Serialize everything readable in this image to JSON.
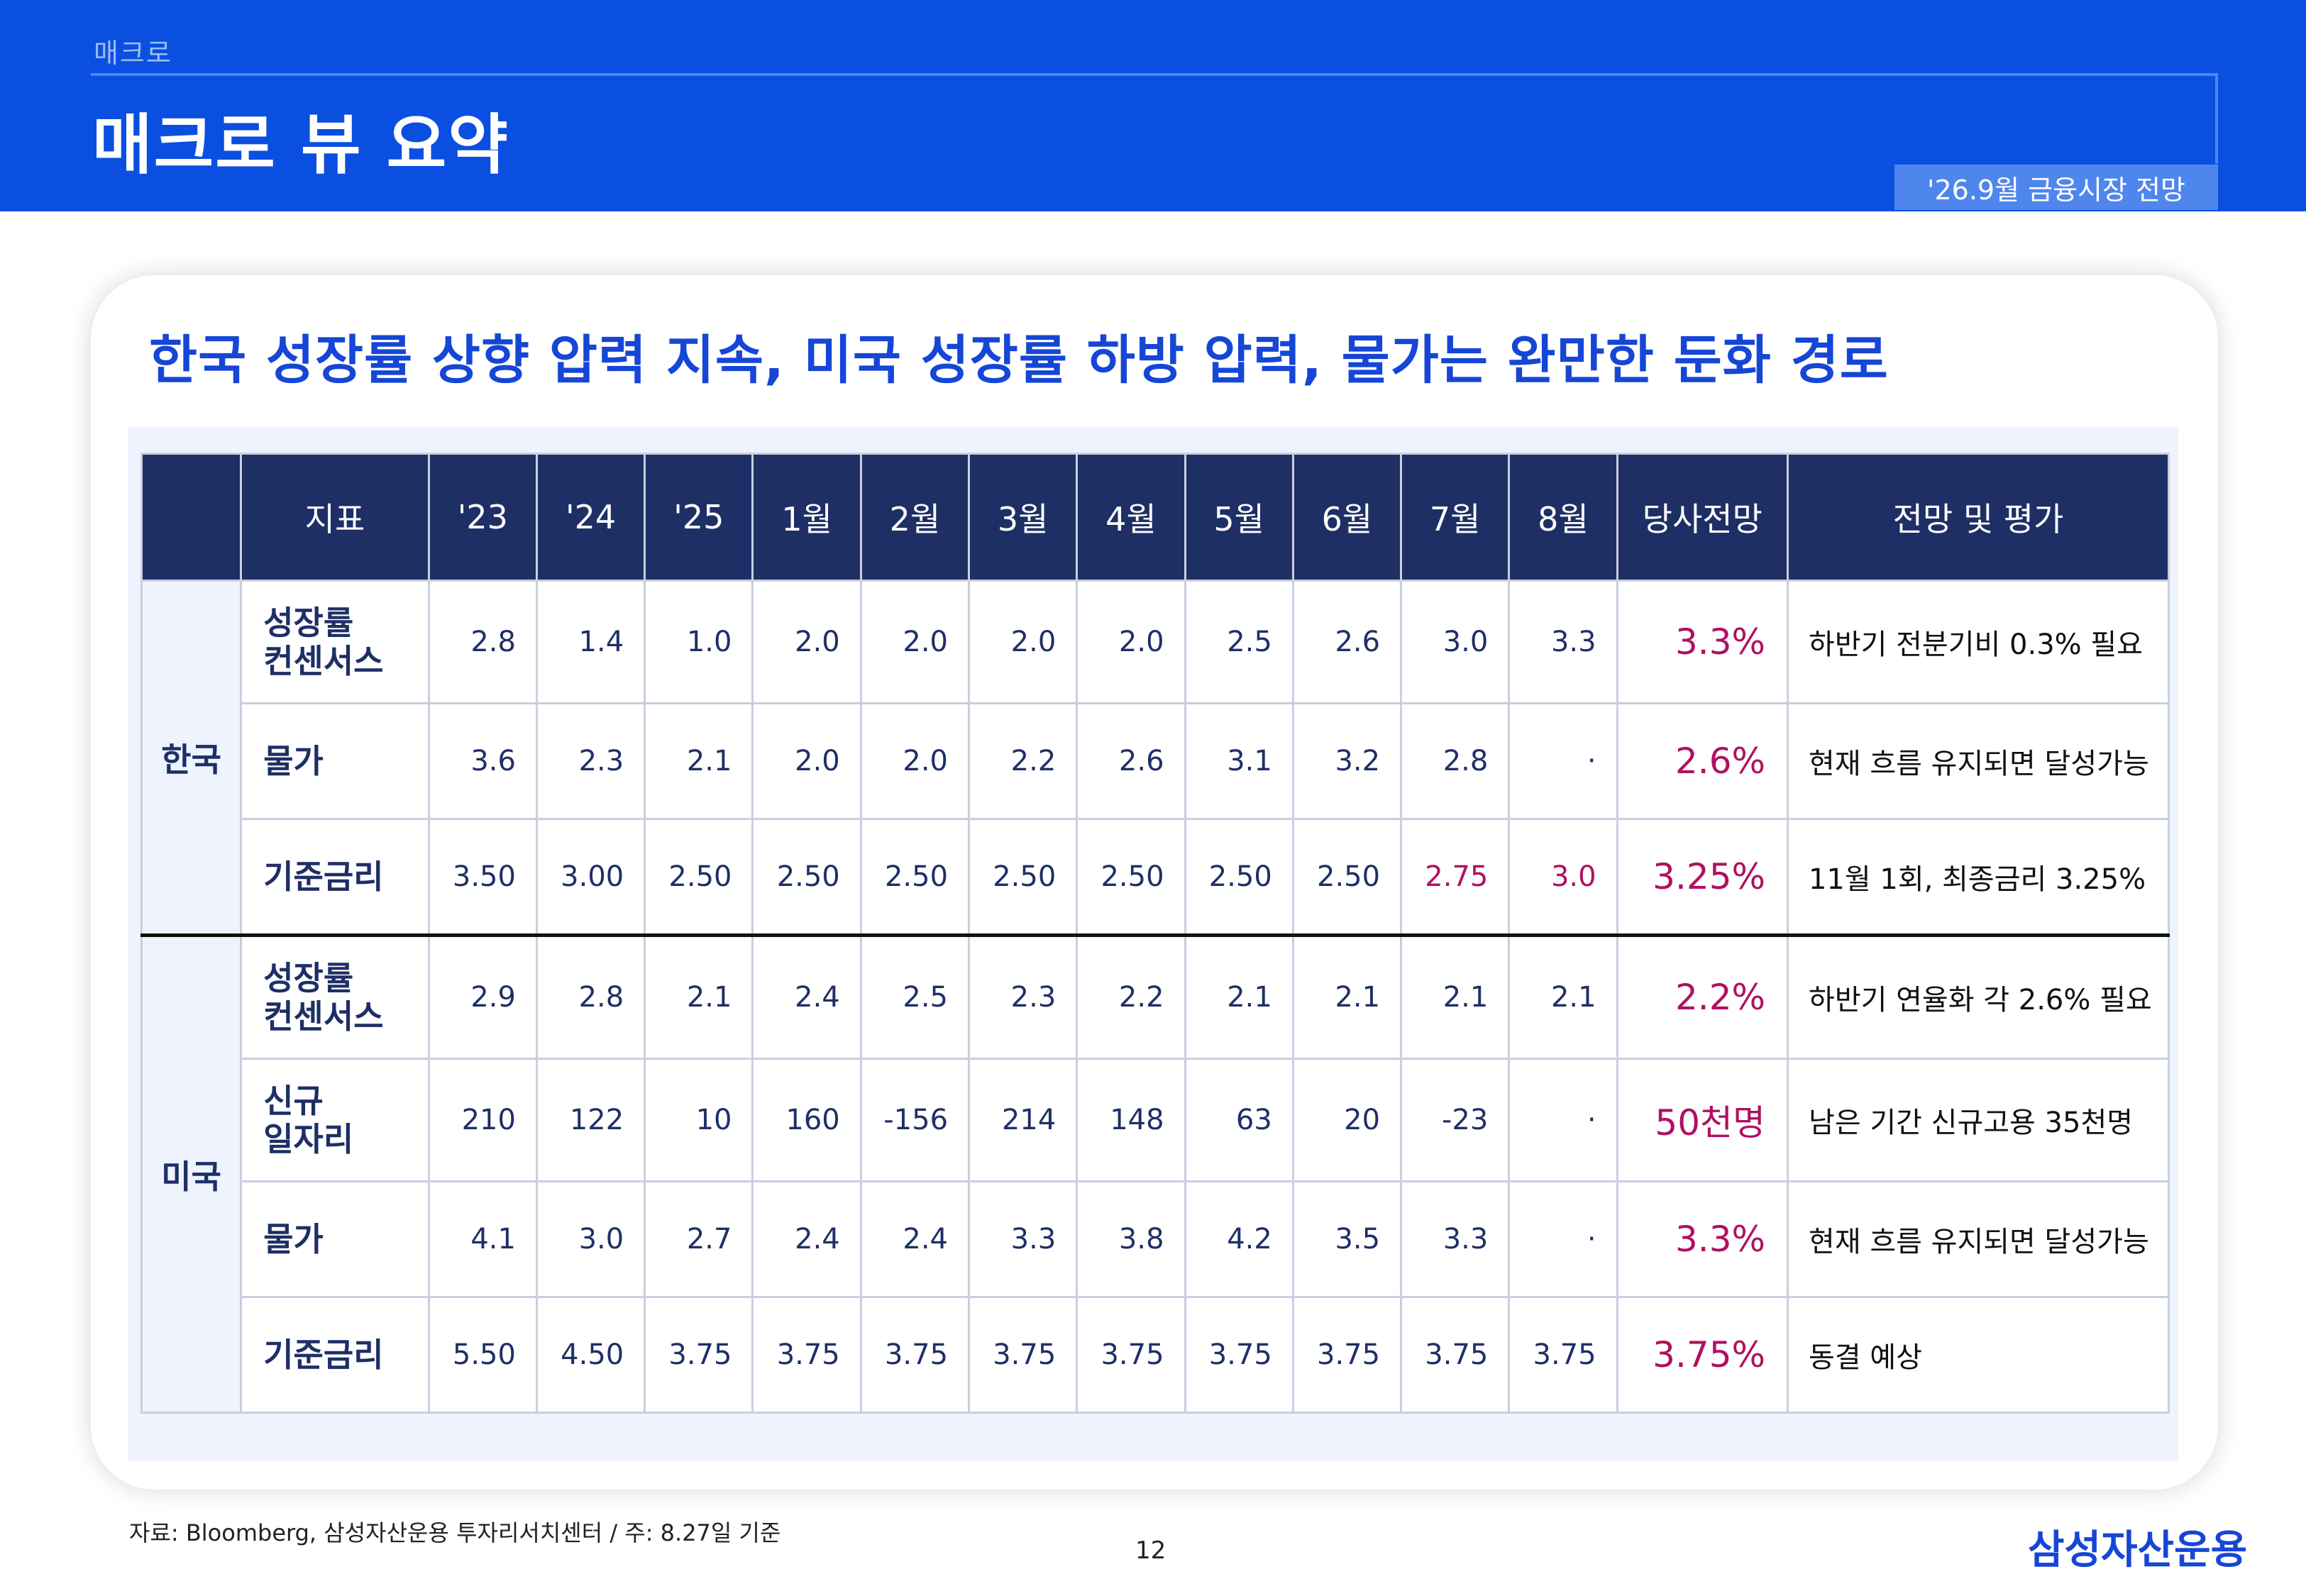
{
  "header": {
    "section": "매크로",
    "title": "매크로 뷰 요약",
    "badge": "'26.9월 금융시장 전망"
  },
  "headline": "한국 성장률 상향 압력 지속, 미국 성장률 하방 압력, 물가는 완만한 둔화 경로",
  "table": {
    "columns": [
      "",
      "지표",
      "'23",
      "'24",
      "'25",
      "1월",
      "2월",
      "3월",
      "4월",
      "5월",
      "6월",
      "7월",
      "8월",
      "당사전망",
      "전망 및 평가"
    ],
    "groups": [
      {
        "country": "한국",
        "rows": [
          {
            "indicator": "성장률\n컨센서스",
            "values": [
              "2.8",
              "1.4",
              "1.0",
              "2.0",
              "2.0",
              "2.0",
              "2.0",
              "2.5",
              "2.6",
              "3.0",
              "3.3"
            ],
            "forecast": "3.3%",
            "evaluation": "하반기 전분기비 0.3% 필요"
          },
          {
            "indicator": "물가",
            "values": [
              "3.6",
              "2.3",
              "2.1",
              "2.0",
              "2.0",
              "2.2",
              "2.6",
              "3.1",
              "3.2",
              "2.8",
              "·"
            ],
            "forecast": "2.6%",
            "evaluation": "현재 흐름 유지되면 달성가능"
          },
          {
            "indicator": "기준금리",
            "values": [
              "3.50",
              "3.00",
              "2.50",
              "2.50",
              "2.50",
              "2.50",
              "2.50",
              "2.50",
              "2.50",
              "2.75",
              "3.0"
            ],
            "forecast": "3.25%",
            "evaluation": "11월 1회, 최종금리 3.25%",
            "highlight_from": 9
          }
        ]
      },
      {
        "country": "미국",
        "rows": [
          {
            "indicator": "성장률\n컨센서스",
            "values": [
              "2.9",
              "2.8",
              "2.1",
              "2.4",
              "2.5",
              "2.3",
              "2.2",
              "2.1",
              "2.1",
              "2.1",
              "2.1"
            ],
            "forecast": "2.2%",
            "evaluation": "하반기 연율화 각 2.6% 필요"
          },
          {
            "indicator": "신규\n일자리",
            "values": [
              "210",
              "122",
              "10",
              "160",
              "-156",
              "214",
              "148",
              "63",
              "20",
              "-23",
              "·"
            ],
            "forecast": "50천명",
            "evaluation": "남은 기간 신규고용 35천명"
          },
          {
            "indicator": "물가",
            "values": [
              "4.1",
              "3.0",
              "2.7",
              "2.4",
              "2.4",
              "3.3",
              "3.8",
              "4.2",
              "3.5",
              "3.3",
              "·"
            ],
            "forecast": "3.3%",
            "evaluation": "현재 흐름 유지되면 달성가능"
          },
          {
            "indicator": "기준금리",
            "values": [
              "5.50",
              "4.50",
              "3.75",
              "3.75",
              "3.75",
              "3.75",
              "3.75",
              "3.75",
              "3.75",
              "3.75",
              "3.75"
            ],
            "forecast": "3.75%",
            "evaluation": "동결 예상"
          }
        ]
      }
    ]
  },
  "footer": {
    "source": "자료: Bloomberg, 삼성자산운용 투자리서치센터 / 주: 8.27일 기준",
    "page": "12",
    "brand": "삼성자산운용"
  },
  "colors": {
    "header_bg": "#0a4fe0",
    "table_header_bg": "#1e2f66",
    "forecast_text": "#b01060",
    "headline_text": "#1546d6"
  }
}
